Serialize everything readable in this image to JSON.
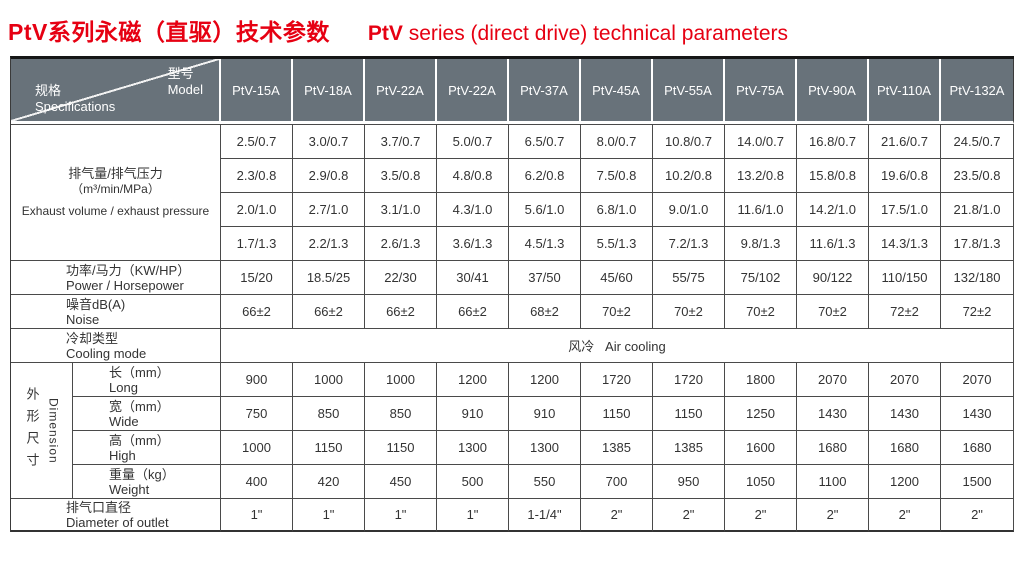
{
  "title": {
    "cn": "PtV系列永磁（直驱）技术参数",
    "en_brand": "PtV",
    "en_rest": " series (direct drive) technical parameters"
  },
  "colors": {
    "title_red": "#e60012",
    "header_bg": "#68727a",
    "grid_line": "#4a4a4a"
  },
  "table": {
    "corner": {
      "model_cn": "型号",
      "model_en": "Model",
      "spec_cn": "规格",
      "spec_en": "Specifications"
    },
    "models": [
      "PtV-15A",
      "PtV-18A",
      "PtV-22A",
      "PtV-22A",
      "PtV-37A",
      "PtV-45A",
      "PtV-55A",
      "PtV-75A",
      "PtV-90A",
      "PtV-110A",
      "PtV-132A"
    ],
    "rows": {
      "exhaust": {
        "label_cn": "排气量/排气压力",
        "label_unit": "（m³/min/MPa）",
        "label_en": "Exhaust volume / exhaust pressure",
        "values": [
          [
            "2.5/0.7",
            "3.0/0.7",
            "3.7/0.7",
            "5.0/0.7",
            "6.5/0.7",
            "8.0/0.7",
            "10.8/0.7",
            "14.0/0.7",
            "16.8/0.7",
            "21.6/0.7",
            "24.5/0.7"
          ],
          [
            "2.3/0.8",
            "2.9/0.8",
            "3.5/0.8",
            "4.8/0.8",
            "6.2/0.8",
            "7.5/0.8",
            "10.2/0.8",
            "13.2/0.8",
            "15.8/0.8",
            "19.6/0.8",
            "23.5/0.8"
          ],
          [
            "2.0/1.0",
            "2.7/1.0",
            "3.1/1.0",
            "4.3/1.0",
            "5.6/1.0",
            "6.8/1.0",
            "9.0/1.0",
            "11.6/1.0",
            "14.2/1.0",
            "17.5/1.0",
            "21.8/1.0"
          ],
          [
            "1.7/1.3",
            "2.2/1.3",
            "2.6/1.3",
            "3.6/1.3",
            "4.5/1.3",
            "5.5/1.3",
            "7.2/1.3",
            "9.8/1.3",
            "11.6/1.3",
            "14.3/1.3",
            "17.8/1.3"
          ]
        ]
      },
      "power": {
        "label_cn": "功率/马力（KW/HP）",
        "label_en": "Power / Horsepower",
        "values": [
          "15/20",
          "18.5/25",
          "22/30",
          "30/41",
          "37/50",
          "45/60",
          "55/75",
          "75/102",
          "90/122",
          "110/150",
          "132/180"
        ]
      },
      "noise": {
        "label_cn": "噪音dB(A)",
        "label_en": "Noise",
        "values": [
          "66±2",
          "66±2",
          "66±2",
          "66±2",
          "68±2",
          "70±2",
          "70±2",
          "70±2",
          "70±2",
          "72±2",
          "72±2"
        ]
      },
      "cooling": {
        "label_cn": "冷却类型",
        "label_en": "Cooling mode",
        "value": "风冷   Air cooling"
      },
      "dimension": {
        "label_cn": "外形尺寸",
        "label_en": "Dimension",
        "sub": [
          {
            "label_cn": "长（mm）",
            "label_en": "Long",
            "values": [
              "900",
              "1000",
              "1000",
              "1200",
              "1200",
              "1720",
              "1720",
              "1800",
              "2070",
              "2070",
              "2070"
            ]
          },
          {
            "label_cn": "宽（mm）",
            "label_en": "Wide",
            "values": [
              "750",
              "850",
              "850",
              "910",
              "910",
              "1150",
              "1150",
              "1250",
              "1430",
              "1430",
              "1430"
            ]
          },
          {
            "label_cn": "高（mm）",
            "label_en": "High",
            "values": [
              "1000",
              "1150",
              "1150",
              "1300",
              "1300",
              "1385",
              "1385",
              "1600",
              "1680",
              "1680",
              "1680"
            ]
          },
          {
            "label_cn": "重量（kg）",
            "label_en": "Weight",
            "values": [
              "400",
              "420",
              "450",
              "500",
              "550",
              "700",
              "950",
              "1050",
              "1100",
              "1200",
              "1500"
            ]
          }
        ]
      },
      "outlet": {
        "label_cn": "排气口直径",
        "label_en": "Diameter of outlet",
        "values": [
          "1\"",
          "1\"",
          "1\"",
          "1\"",
          "1-1/4\"",
          "2\"",
          "2\"",
          "2\"",
          "2\"",
          "2\"",
          "2\""
        ]
      }
    }
  }
}
